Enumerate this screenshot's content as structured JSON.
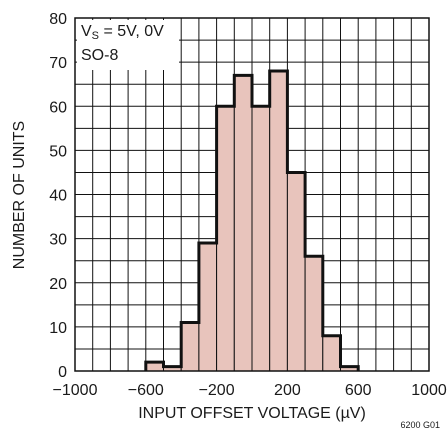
{
  "chart_data": {
    "type": "bar",
    "bins": [
      {
        "x0": -600,
        "x1": -500,
        "value": 2
      },
      {
        "x0": -500,
        "x1": -400,
        "value": 1
      },
      {
        "x0": -400,
        "x1": -300,
        "value": 11
      },
      {
        "x0": -300,
        "x1": -200,
        "value": 29
      },
      {
        "x0": -200,
        "x1": -100,
        "value": 60
      },
      {
        "x0": -100,
        "x1": 0,
        "value": 67
      },
      {
        "x0": 0,
        "x1": 100,
        "value": 60
      },
      {
        "x0": 100,
        "x1": 200,
        "value": 68
      },
      {
        "x0": 200,
        "x1": 300,
        "value": 45
      },
      {
        "x0": 300,
        "x1": 400,
        "value": 26
      },
      {
        "x0": 400,
        "x1": 500,
        "value": 8
      },
      {
        "x0": 500,
        "x1": 600,
        "value": 1
      }
    ],
    "xlim": [
      -1000,
      1000
    ],
    "ylim": [
      0,
      80
    ],
    "x_ticks": [
      -1000,
      -600,
      -200,
      200,
      600,
      1000
    ],
    "x_tick_labels": [
      "−1000",
      "−600",
      "−200",
      "200",
      "600",
      "1000"
    ],
    "y_ticks": [
      0,
      10,
      20,
      30,
      40,
      50,
      60,
      70,
      80
    ],
    "xlabel": "INPUT OFFSET VOLTAGE (µV)",
    "ylabel": "NUMBER OF UNITS",
    "grid": true,
    "legend": {
      "vs_prefix": "V",
      "vs_sub": "S",
      "vs_suffix": " = 5V, 0V",
      "package": "SO-8",
      "position": "top-left"
    },
    "figure_code": "6200 G01",
    "bar_color": "#e8c4bc",
    "bar_edge_color": "#111111",
    "grid_color": "#111111"
  }
}
